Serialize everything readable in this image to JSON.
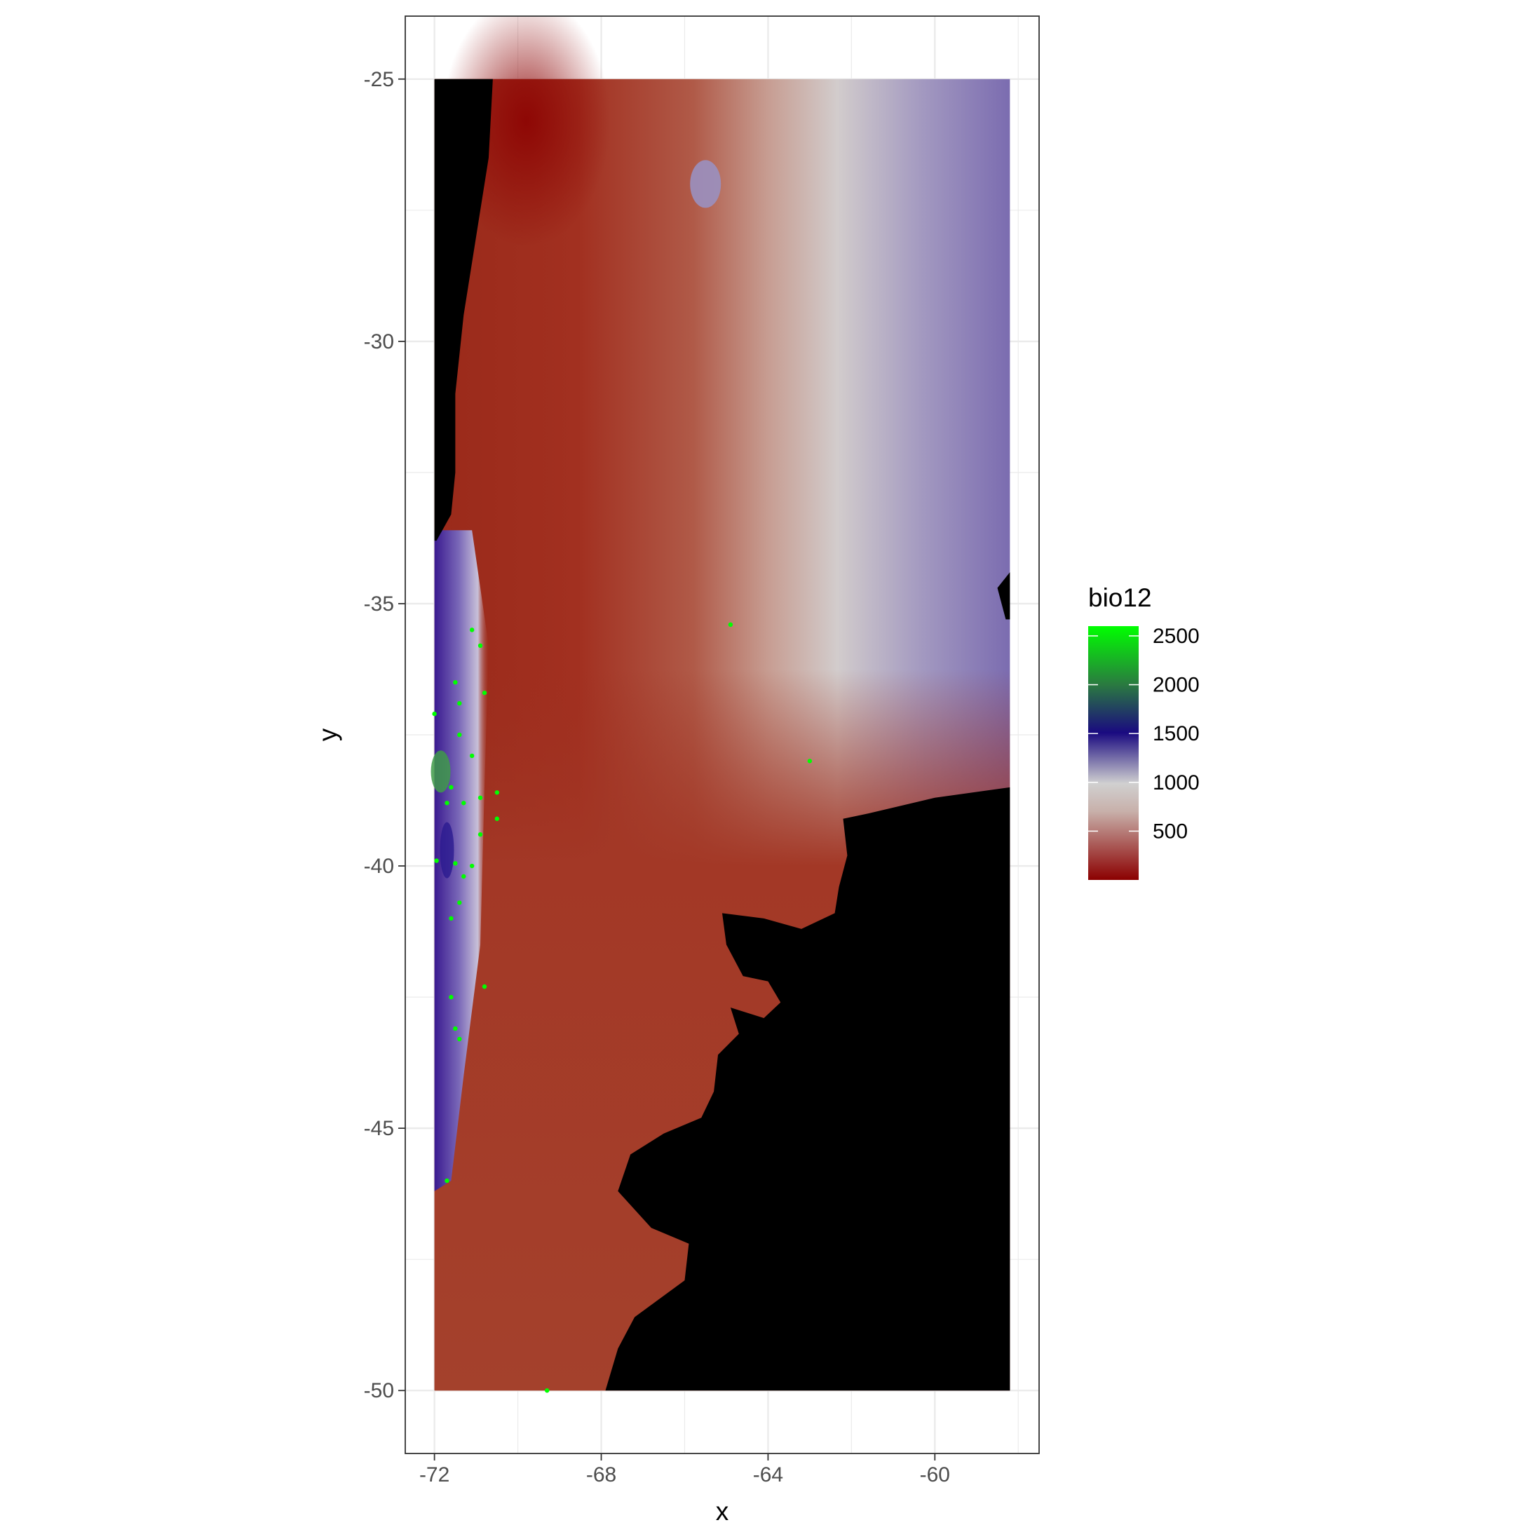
{
  "chart_data": {
    "type": "raster-map",
    "xlabel": "x",
    "ylabel": "y",
    "xlim": [
      -72.7,
      -57.5
    ],
    "ylim": [
      -51.2,
      -23.8
    ],
    "x_ticks": [
      -72,
      -68,
      -64,
      -60
    ],
    "x_tick_labels": [
      "-72",
      "-68",
      "-64",
      "-60"
    ],
    "y_ticks": [
      -25,
      -30,
      -35,
      -40,
      -45,
      -50
    ],
    "y_tick_labels": [
      "-25",
      "-30",
      "-35",
      "-40",
      "-45",
      "-50"
    ],
    "raster_extent": {
      "xmin": -72,
      "xmax": -58.2,
      "ymin": -50,
      "ymax": -25
    },
    "legend": {
      "title": "bio12",
      "range": [
        0,
        2600
      ],
      "breaks": [
        500,
        1000,
        1500,
        2000,
        2500
      ],
      "labels": [
        "500",
        "1000",
        "1500",
        "2000",
        "2500"
      ],
      "color_stops": [
        {
          "value": 0,
          "color": "#8b0000"
        },
        {
          "value": 700,
          "color": "#c8b0aa"
        },
        {
          "value": 1000,
          "color": "#d0d0d0"
        },
        {
          "value": 1500,
          "color": "#1a0a80"
        },
        {
          "value": 2000,
          "color": "#2a7a40"
        },
        {
          "value": 2600,
          "color": "#00ff00"
        }
      ]
    },
    "no_data_color": "#000000",
    "point_color": "#00ff00",
    "points": [
      {
        "x": -64.9,
        "y": -35.4
      },
      {
        "x": -63.0,
        "y": -38.0
      },
      {
        "x": -71.1,
        "y": -35.5
      },
      {
        "x": -70.9,
        "y": -35.8
      },
      {
        "x": -71.5,
        "y": -36.5
      },
      {
        "x": -70.8,
        "y": -36.7
      },
      {
        "x": -71.4,
        "y": -36.9
      },
      {
        "x": -72.0,
        "y": -37.1
      },
      {
        "x": -71.4,
        "y": -37.5
      },
      {
        "x": -71.1,
        "y": -37.9
      },
      {
        "x": -71.6,
        "y": -38.5
      },
      {
        "x": -70.9,
        "y": -38.7
      },
      {
        "x": -70.5,
        "y": -38.6
      },
      {
        "x": -71.7,
        "y": -38.8
      },
      {
        "x": -71.3,
        "y": -38.8
      },
      {
        "x": -70.5,
        "y": -39.1
      },
      {
        "x": -70.9,
        "y": -39.4
      },
      {
        "x": -71.95,
        "y": -39.9
      },
      {
        "x": -71.5,
        "y": -39.95
      },
      {
        "x": -71.1,
        "y": -40.0
      },
      {
        "x": -71.3,
        "y": -40.2
      },
      {
        "x": -71.4,
        "y": -40.7
      },
      {
        "x": -71.6,
        "y": -41.0
      },
      {
        "x": -70.8,
        "y": -42.3
      },
      {
        "x": -71.6,
        "y": -42.5
      },
      {
        "x": -71.5,
        "y": -43.1
      },
      {
        "x": -71.4,
        "y": -43.3
      },
      {
        "x": -71.7,
        "y": -46.0
      },
      {
        "x": -69.3,
        "y": -50.0
      }
    ]
  }
}
